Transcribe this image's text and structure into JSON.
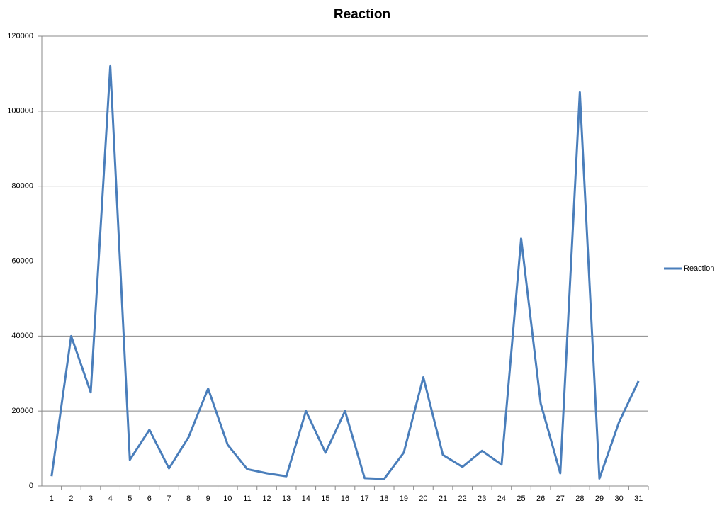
{
  "chart_data": {
    "type": "line",
    "title": "Reaction",
    "categories": [
      "1",
      "2",
      "3",
      "4",
      "5",
      "6",
      "7",
      "8",
      "9",
      "10",
      "11",
      "12",
      "13",
      "14",
      "15",
      "16",
      "17",
      "18",
      "19",
      "20",
      "21",
      "22",
      "23",
      "24",
      "25",
      "26",
      "27",
      "28",
      "29",
      "30",
      "31"
    ],
    "series": [
      {
        "name": "Reaction",
        "color": "#4a7ebb",
        "values": [
          2600,
          40000,
          25000,
          112000,
          7000,
          15000,
          4700,
          13000,
          26000,
          11000,
          4500,
          3400,
          2600,
          20000,
          8900,
          20000,
          2100,
          1900,
          8900,
          29000,
          8300,
          5100,
          9400,
          5700,
          66000,
          22000,
          3400,
          105000,
          2000,
          17000,
          28000
        ]
      }
    ],
    "ylim": [
      0,
      120000
    ],
    "yticks": [
      0,
      20000,
      40000,
      60000,
      80000,
      100000,
      120000
    ],
    "grid": true,
    "legend": "right"
  }
}
